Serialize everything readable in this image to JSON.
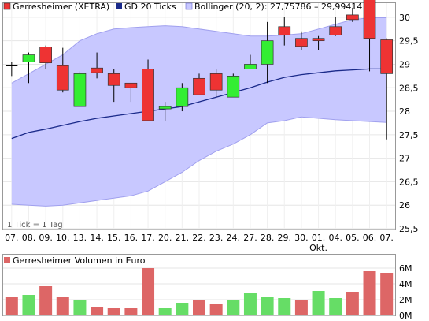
{
  "chart_data": [
    {
      "type": "candlestick",
      "legend": {
        "main": "Gerresheimer (XETRA)",
        "ma": "GD 20 Ticks",
        "bollinger": "Bollinger (20, 2): 27,75786 – 29,99414"
      },
      "note": "1 Tick = 1 Tag",
      "x_labels": [
        "07.",
        "08.",
        "09.",
        "10.",
        "13.",
        "14.",
        "15.",
        "16.",
        "17.",
        "20.",
        "21.",
        "22.",
        "23.",
        "24.",
        "27.",
        "28.",
        "29.",
        "30.",
        "01.",
        "04.",
        "05.",
        "06.",
        "07."
      ],
      "x_sublabels": [
        {
          "index": 18,
          "text": "Okt."
        }
      ],
      "y_ticks": [
        "25,5",
        "26",
        "26,5",
        "27",
        "27,5",
        "28",
        "28,5",
        "29",
        "29,5",
        "30"
      ],
      "ylim": [
        25.5,
        30.3
      ],
      "colors": {
        "up": "#33ee33",
        "down": "#ee3333",
        "neutral": "#000000",
        "band_fill": "#c8c8ff",
        "band_line": "#a0a0ee",
        "ma": "#1a2a8a"
      },
      "candles": [
        {
          "o": 28.97,
          "h": 29.05,
          "l": 28.75,
          "c": 28.97
        },
        {
          "o": 29.05,
          "h": 29.25,
          "l": 28.6,
          "c": 29.2
        },
        {
          "o": 29.37,
          "h": 29.4,
          "l": 28.9,
          "c": 29.03
        },
        {
          "o": 28.97,
          "h": 29.35,
          "l": 28.4,
          "c": 28.45
        },
        {
          "o": 28.1,
          "h": 28.85,
          "l": 28.1,
          "c": 28.8
        },
        {
          "o": 28.92,
          "h": 29.25,
          "l": 28.7,
          "c": 28.82
        },
        {
          "o": 28.8,
          "h": 28.9,
          "l": 28.2,
          "c": 28.55
        },
        {
          "o": 28.6,
          "h": 28.6,
          "l": 28.2,
          "c": 28.5
        },
        {
          "o": 28.9,
          "h": 29.1,
          "l": 27.8,
          "c": 27.8
        },
        {
          "o": 28.05,
          "h": 28.2,
          "l": 27.8,
          "c": 28.1
        },
        {
          "o": 28.1,
          "h": 28.6,
          "l": 28.0,
          "c": 28.5
        },
        {
          "o": 28.7,
          "h": 28.8,
          "l": 28.35,
          "c": 28.35
        },
        {
          "o": 28.8,
          "h": 28.9,
          "l": 28.3,
          "c": 28.45
        },
        {
          "o": 28.3,
          "h": 28.8,
          "l": 28.3,
          "c": 28.75
        },
        {
          "o": 28.9,
          "h": 29.2,
          "l": 28.9,
          "c": 29.0
        },
        {
          "o": 29.0,
          "h": 29.9,
          "l": 28.6,
          "c": 29.5
        },
        {
          "o": 29.8,
          "h": 30.0,
          "l": 29.4,
          "c": 29.62
        },
        {
          "o": 29.55,
          "h": 29.7,
          "l": 29.3,
          "c": 29.38
        },
        {
          "o": 29.55,
          "h": 29.6,
          "l": 29.3,
          "c": 29.5
        },
        {
          "o": 29.8,
          "h": 30.0,
          "l": 29.6,
          "c": 29.62
        },
        {
          "o": 30.05,
          "h": 30.2,
          "l": 29.9,
          "c": 29.95
        },
        {
          "o": 30.4,
          "h": 30.4,
          "l": 28.85,
          "c": 29.55
        },
        {
          "o": 29.52,
          "h": 29.55,
          "l": 27.4,
          "c": 28.8
        }
      ],
      "ma": [
        27.42,
        27.55,
        27.62,
        27.7,
        27.78,
        27.85,
        27.9,
        27.95,
        28.0,
        28.05,
        28.1,
        28.2,
        28.3,
        28.4,
        28.5,
        28.62,
        28.72,
        28.78,
        28.82,
        28.86,
        28.88,
        28.9,
        28.9
      ],
      "bb_upper": [
        28.6,
        28.8,
        29.0,
        29.2,
        29.5,
        29.65,
        29.75,
        29.78,
        29.8,
        29.82,
        29.8,
        29.75,
        29.7,
        29.65,
        29.6,
        29.6,
        29.62,
        29.65,
        29.75,
        29.85,
        29.95,
        29.99,
        29.99
      ],
      "bb_lower": [
        26.02,
        26.0,
        25.98,
        26.0,
        26.05,
        26.1,
        26.15,
        26.2,
        26.3,
        26.5,
        26.7,
        26.95,
        27.15,
        27.3,
        27.5,
        27.75,
        27.8,
        27.88,
        27.85,
        27.82,
        27.8,
        27.78,
        27.76
      ]
    },
    {
      "type": "bar",
      "title": "Gerresheimer Volumen in Euro",
      "y_ticks": [
        "0M",
        "2M",
        "4M",
        "6M"
      ],
      "ylim": [
        0,
        6.4
      ],
      "colors": {
        "up": "#66dd66",
        "down": "#dd6666"
      },
      "values": [
        2.4,
        2.6,
        3.8,
        2.3,
        2.0,
        1.1,
        1.0,
        1.0,
        6.0,
        1.0,
        1.6,
        2.0,
        1.5,
        1.9,
        2.8,
        2.4,
        2.2,
        2.0,
        3.1,
        2.2,
        3.0,
        5.7,
        5.4
      ],
      "directions": [
        "down",
        "up",
        "down",
        "down",
        "up",
        "down",
        "down",
        "down",
        "down",
        "up",
        "up",
        "down",
        "down",
        "up",
        "up",
        "up",
        "up",
        "down",
        "up",
        "up",
        "down",
        "down",
        "down"
      ]
    }
  ]
}
